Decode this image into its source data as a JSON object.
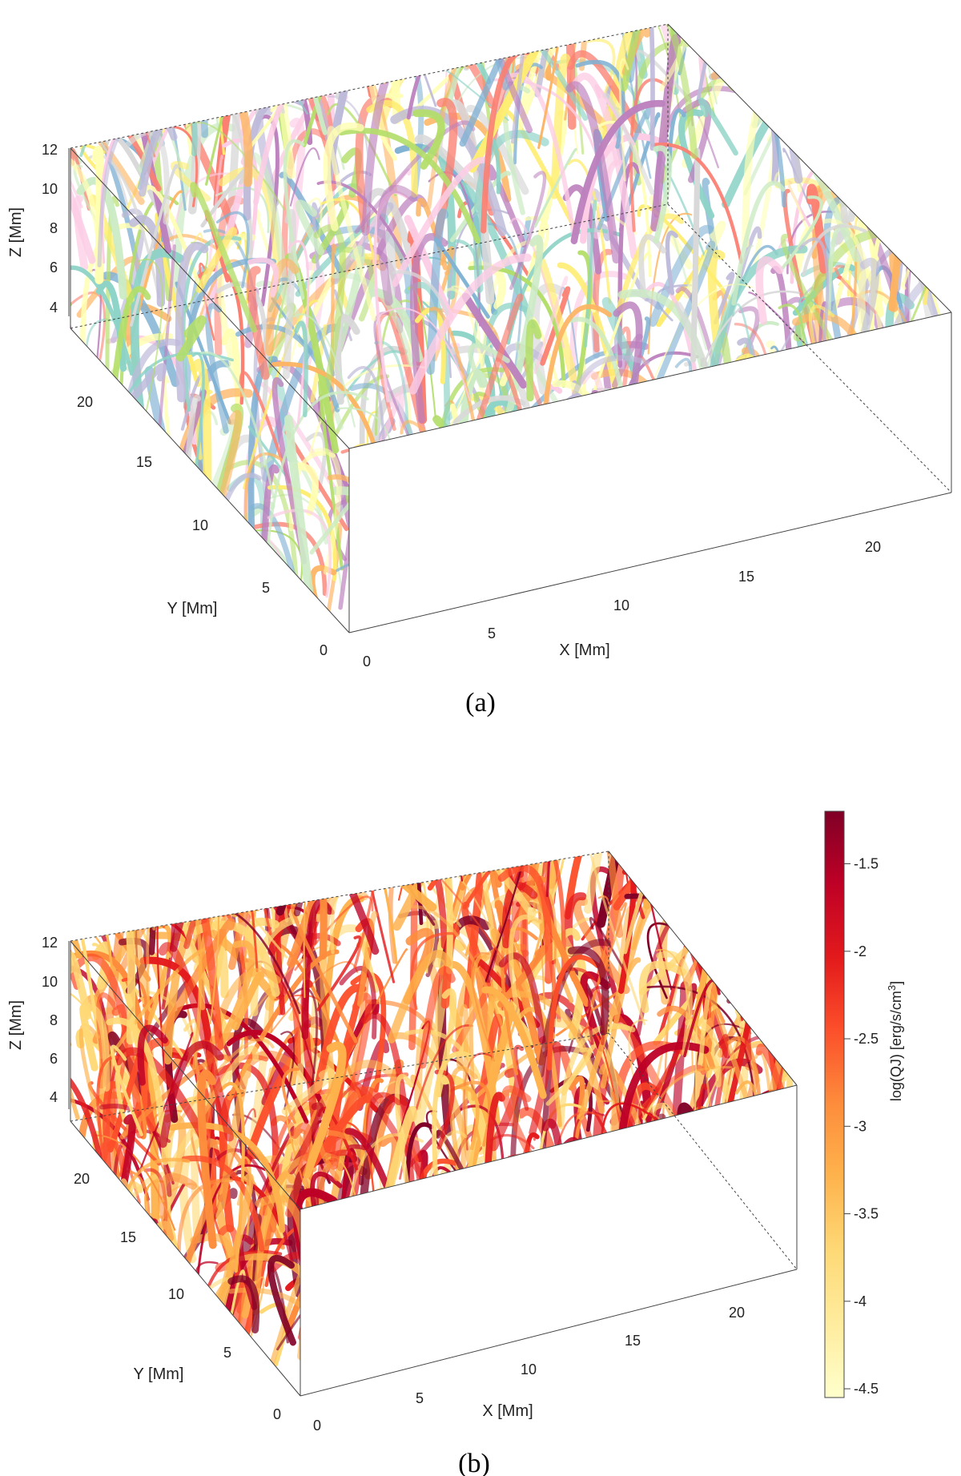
{
  "panel_a": {
    "caption": "(a)",
    "x_label": "X [Mm]",
    "y_label": "Y [Mm]",
    "z_label": "Z [Mm]",
    "x_ticks": [
      "0",
      "5",
      "10",
      "15",
      "20"
    ],
    "y_ticks": [
      "0",
      "5",
      "10",
      "15",
      "20"
    ],
    "z_ticks": [
      "4",
      "6",
      "8",
      "10",
      "12"
    ],
    "palette": [
      "#8dd3c7",
      "#ffffb3",
      "#bebada",
      "#fb8072",
      "#80b1d3",
      "#fdb462",
      "#b3de69",
      "#fccde5",
      "#d9d9d9",
      "#bc80bd",
      "#ccebc5",
      "#ffed6f"
    ]
  },
  "panel_b": {
    "caption": "(b)",
    "x_label": "X [Mm]",
    "y_label": "Y [Mm]",
    "z_label": "Z [Mm]",
    "x_ticks": [
      "0",
      "5",
      "10",
      "15",
      "20"
    ],
    "y_ticks": [
      "0",
      "5",
      "10",
      "15",
      "20"
    ],
    "z_ticks": [
      "4",
      "6",
      "8",
      "10",
      "12"
    ],
    "colorbar": {
      "label": "log(QJ) [erg/s/cm",
      "label_sup": "3",
      "label_end": "]",
      "ticks": [
        "-1.5",
        "-2",
        "-2.5",
        "-3",
        "-3.5",
        "-4",
        "-4.5"
      ],
      "tick_values": [
        -1.5,
        -2,
        -2.5,
        -3,
        -3.5,
        -4,
        -4.5
      ],
      "range": [
        -4.55,
        -1.2
      ],
      "colors": [
        "#ffffcc",
        "#ffeda0",
        "#fed976",
        "#feb24c",
        "#fd8d3c",
        "#fc4e2a",
        "#e31a1c",
        "#bd0026",
        "#800026"
      ]
    }
  }
}
